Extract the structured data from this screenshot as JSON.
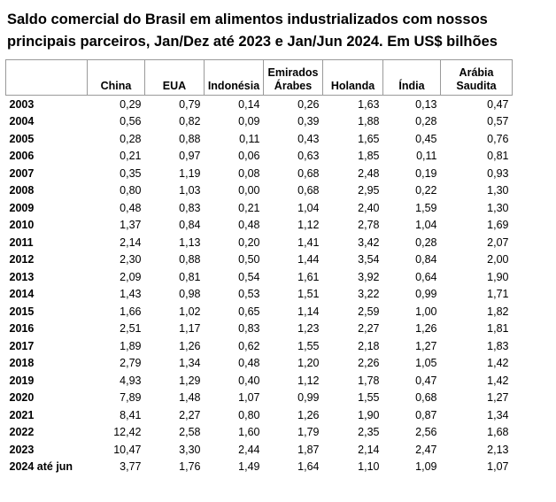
{
  "header": {
    "title_lines": [
      "Saldo comercial do Brasil em alimentos industrializados com nossos",
      "principais parceiros, Jan/Dez até 2023 e Jan/Jun 2024. Em US$ bilhões"
    ]
  },
  "table": {
    "columns": [
      "China",
      "EUA",
      "Indonésia",
      "Emirados Árabes",
      "Holanda",
      "Índia",
      "Arábia Saudita"
    ],
    "rows": [
      [
        "2003",
        "0,29",
        "0,79",
        "0,14",
        "0,26",
        "1,63",
        "0,13",
        "0,47"
      ],
      [
        "2004",
        "0,56",
        "0,82",
        "0,09",
        "0,39",
        "1,88",
        "0,28",
        "0,57"
      ],
      [
        "2005",
        "0,28",
        "0,88",
        "0,11",
        "0,43",
        "1,65",
        "0,45",
        "0,76"
      ],
      [
        "2006",
        "0,21",
        "0,97",
        "0,06",
        "0,63",
        "1,85",
        "0,11",
        "0,81"
      ],
      [
        "2007",
        "0,35",
        "1,19",
        "0,08",
        "0,68",
        "2,48",
        "0,19",
        "0,93"
      ],
      [
        "2008",
        "0,80",
        "1,03",
        "0,00",
        "0,68",
        "2,95",
        "0,22",
        "1,30"
      ],
      [
        "2009",
        "0,48",
        "0,83",
        "0,21",
        "1,04",
        "2,40",
        "1,59",
        "1,30"
      ],
      [
        "2010",
        "1,37",
        "0,84",
        "0,48",
        "1,12",
        "2,78",
        "1,04",
        "1,69"
      ],
      [
        "2011",
        "2,14",
        "1,13",
        "0,20",
        "1,41",
        "3,42",
        "0,28",
        "2,07"
      ],
      [
        "2012",
        "2,30",
        "0,88",
        "0,50",
        "1,44",
        "3,54",
        "0,84",
        "2,00"
      ],
      [
        "2013",
        "2,09",
        "0,81",
        "0,54",
        "1,61",
        "3,92",
        "0,64",
        "1,90"
      ],
      [
        "2014",
        "1,43",
        "0,98",
        "0,53",
        "1,51",
        "3,22",
        "0,99",
        "1,71"
      ],
      [
        "2015",
        "1,66",
        "1,02",
        "0,65",
        "1,14",
        "2,59",
        "1,00",
        "1,82"
      ],
      [
        "2016",
        "2,51",
        "1,17",
        "0,83",
        "1,23",
        "2,27",
        "1,26",
        "1,81"
      ],
      [
        "2017",
        "1,89",
        "1,26",
        "0,62",
        "1,55",
        "2,18",
        "1,27",
        "1,83"
      ],
      [
        "2018",
        "2,79",
        "1,34",
        "0,48",
        "1,20",
        "2,26",
        "1,05",
        "1,42"
      ],
      [
        "2019",
        "4,93",
        "1,29",
        "0,40",
        "1,12",
        "1,78",
        "0,47",
        "1,42"
      ],
      [
        "2020",
        "7,89",
        "1,48",
        "1,07",
        "0,99",
        "1,55",
        "0,68",
        "1,27"
      ],
      [
        "2021",
        "8,41",
        "2,27",
        "0,80",
        "1,26",
        "1,90",
        "0,87",
        "1,34"
      ],
      [
        "2022",
        "12,42",
        "2,58",
        "1,60",
        "1,79",
        "2,35",
        "2,56",
        "1,68"
      ],
      [
        "2023",
        "10,47",
        "3,30",
        "2,44",
        "1,87",
        "2,14",
        "2,47",
        "2,13"
      ],
      [
        "2024 até jun",
        "3,77",
        "1,76",
        "1,49",
        "1,64",
        "1,10",
        "1,09",
        "1,07"
      ]
    ]
  }
}
